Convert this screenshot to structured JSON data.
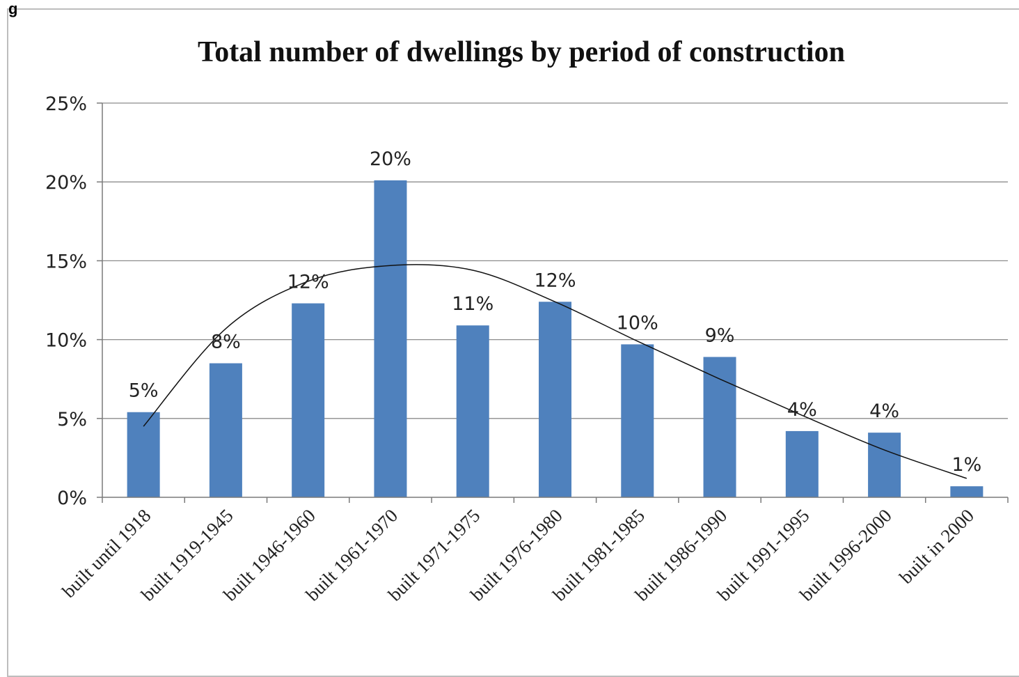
{
  "page": {
    "corner_text": "g"
  },
  "chart_data": {
    "type": "bar",
    "title": "Total number of dwellings by period of construction",
    "xlabel": "",
    "ylabel": "",
    "ylim": [
      0,
      25
    ],
    "ytick_values": [
      0,
      5,
      10,
      15,
      20,
      25
    ],
    "ytick_labels": [
      "0%",
      "5%",
      "10%",
      "15%",
      "20%",
      "25%"
    ],
    "grid": true,
    "legend": "none",
    "categories": [
      "built until 1918",
      "built 1919-1945",
      "built 1946-1960",
      "built 1961-1970",
      "built 1971-1975",
      "built 1976-1980",
      "built 1981-1985",
      "built 1986-1990",
      "built 1991-1995",
      "built 1996-2000",
      "built in 2000"
    ],
    "values": [
      5.4,
      8.5,
      12.3,
      20.1,
      10.9,
      12.4,
      9.7,
      8.9,
      4.2,
      4.1,
      0.7
    ],
    "data_labels": [
      "5%",
      "8%",
      "12%",
      "20%",
      "11%",
      "12%",
      "10%",
      "9%",
      "4%",
      "4%",
      "1%"
    ],
    "trendline": {
      "type": "polynomial",
      "values": [
        4.5,
        10.7,
        13.7,
        14.7,
        14.4,
        12.4,
        9.9,
        7.5,
        5.2,
        3.0,
        1.2
      ]
    },
    "colors": {
      "bar": "#4f81bd",
      "trendline": "#111111",
      "grid": "#8c8c8c"
    }
  }
}
